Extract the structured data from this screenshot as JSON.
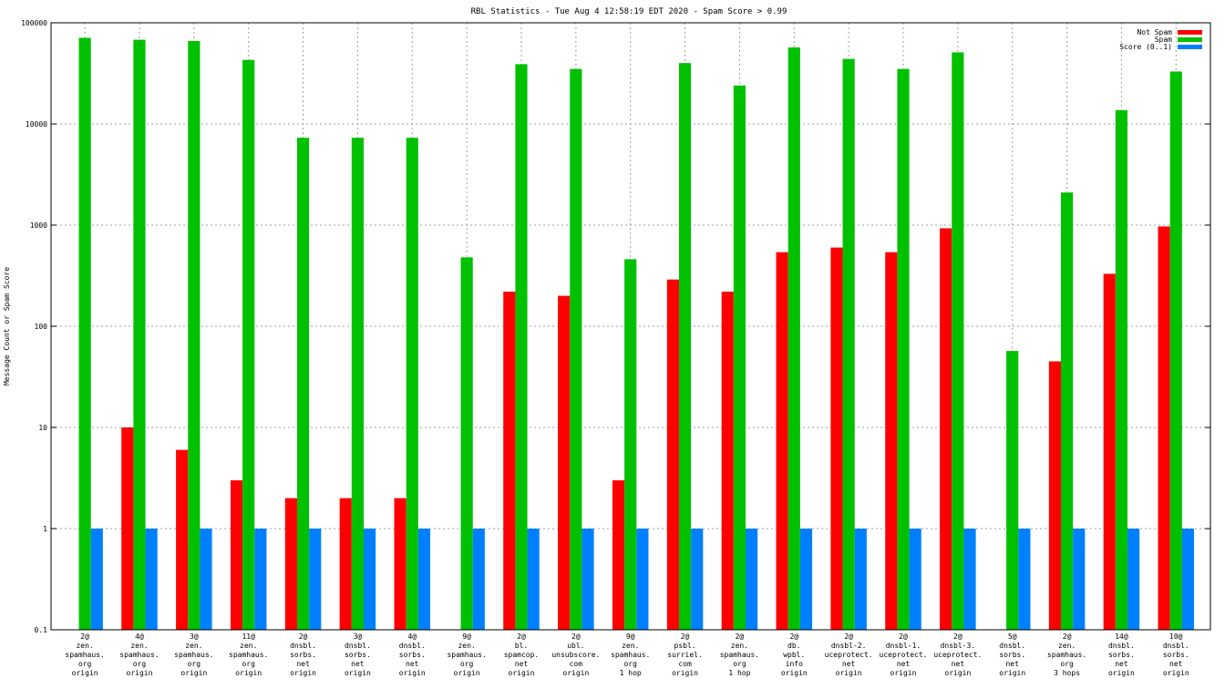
{
  "chart_data": {
    "type": "bar",
    "title": "RBL Statistics - Tue Aug  4 12:58:19 EDT 2020 - Spam Score > 0.99",
    "xlabel": "",
    "ylabel": "Message Count or Spam Score",
    "yscale": "log",
    "ylim": [
      0.1,
      100000
    ],
    "yticks": [
      "0.1",
      "1",
      "10",
      "100",
      "1000",
      "10000",
      "100000"
    ],
    "grid": true,
    "legend_position": "top-right",
    "categories": [
      [
        "2@",
        "zen.",
        "spamhaus.",
        "org",
        "origin"
      ],
      [
        "4@",
        "zen.",
        "spamhaus.",
        "org",
        "origin"
      ],
      [
        "3@",
        "zen.",
        "spamhaus.",
        "org",
        "origin"
      ],
      [
        "11@",
        "zen.",
        "spamhaus.",
        "org",
        "origin"
      ],
      [
        "2@",
        "dnsbl.",
        "sorbs.",
        "net",
        "origin"
      ],
      [
        "3@",
        "dnsbl.",
        "sorbs.",
        "net",
        "origin"
      ],
      [
        "4@",
        "dnsbl.",
        "sorbs.",
        "net",
        "origin"
      ],
      [
        "9@",
        "zen.",
        "spamhaus.",
        "org",
        "origin"
      ],
      [
        "2@",
        "bl.",
        "spamcop.",
        "net",
        "origin"
      ],
      [
        "2@",
        "ubl.",
        "unsubscore.",
        "com",
        "origin"
      ],
      [
        "9@",
        "zen.",
        "spamhaus.",
        "org",
        "1 hop"
      ],
      [
        "2@",
        "psbl.",
        "surriel.",
        "com",
        "origin"
      ],
      [
        "2@",
        "zen.",
        "spamhaus.",
        "org",
        "1 hop"
      ],
      [
        "2@",
        "db.",
        "wpbl.",
        "info",
        "origin"
      ],
      [
        "2@",
        "dnsbl-2.",
        "uceprotect.",
        "net",
        "origin"
      ],
      [
        "2@",
        "dnsbl-1.",
        "uceprotect.",
        "net",
        "origin"
      ],
      [
        "2@",
        "dnsbl-3.",
        "uceprotect.",
        "net",
        "origin"
      ],
      [
        "5@",
        "dnsbl.",
        "sorbs.",
        "net",
        "origin"
      ],
      [
        "2@",
        "zen.",
        "spamhaus.",
        "org",
        "3 hops"
      ],
      [
        "14@",
        "dnsbl.",
        "sorbs.",
        "net",
        "origin"
      ],
      [
        "10@",
        "dnsbl.",
        "sorbs.",
        "net",
        "origin"
      ]
    ],
    "series": [
      {
        "name": "Not Spam",
        "color": "#ff0000",
        "values": [
          null,
          10,
          6,
          3,
          2,
          2,
          2,
          null,
          220,
          200,
          3,
          290,
          220,
          540,
          600,
          540,
          930,
          null,
          45,
          330,
          970
        ]
      },
      {
        "name": "Spam",
        "color": "#00c000",
        "values": [
          71000,
          68000,
          66000,
          43000,
          7300,
          7300,
          7300,
          480,
          39000,
          35000,
          460,
          40000,
          24000,
          57000,
          44000,
          35000,
          51000,
          57,
          2100,
          13700,
          33000
        ]
      },
      {
        "name": "Score (0..1)",
        "color": "#0080ff",
        "values": [
          1,
          1,
          1,
          1,
          1,
          1,
          1,
          1,
          1,
          1,
          1,
          1,
          1,
          1,
          1,
          1,
          1,
          1,
          1,
          1,
          1
        ]
      }
    ]
  }
}
